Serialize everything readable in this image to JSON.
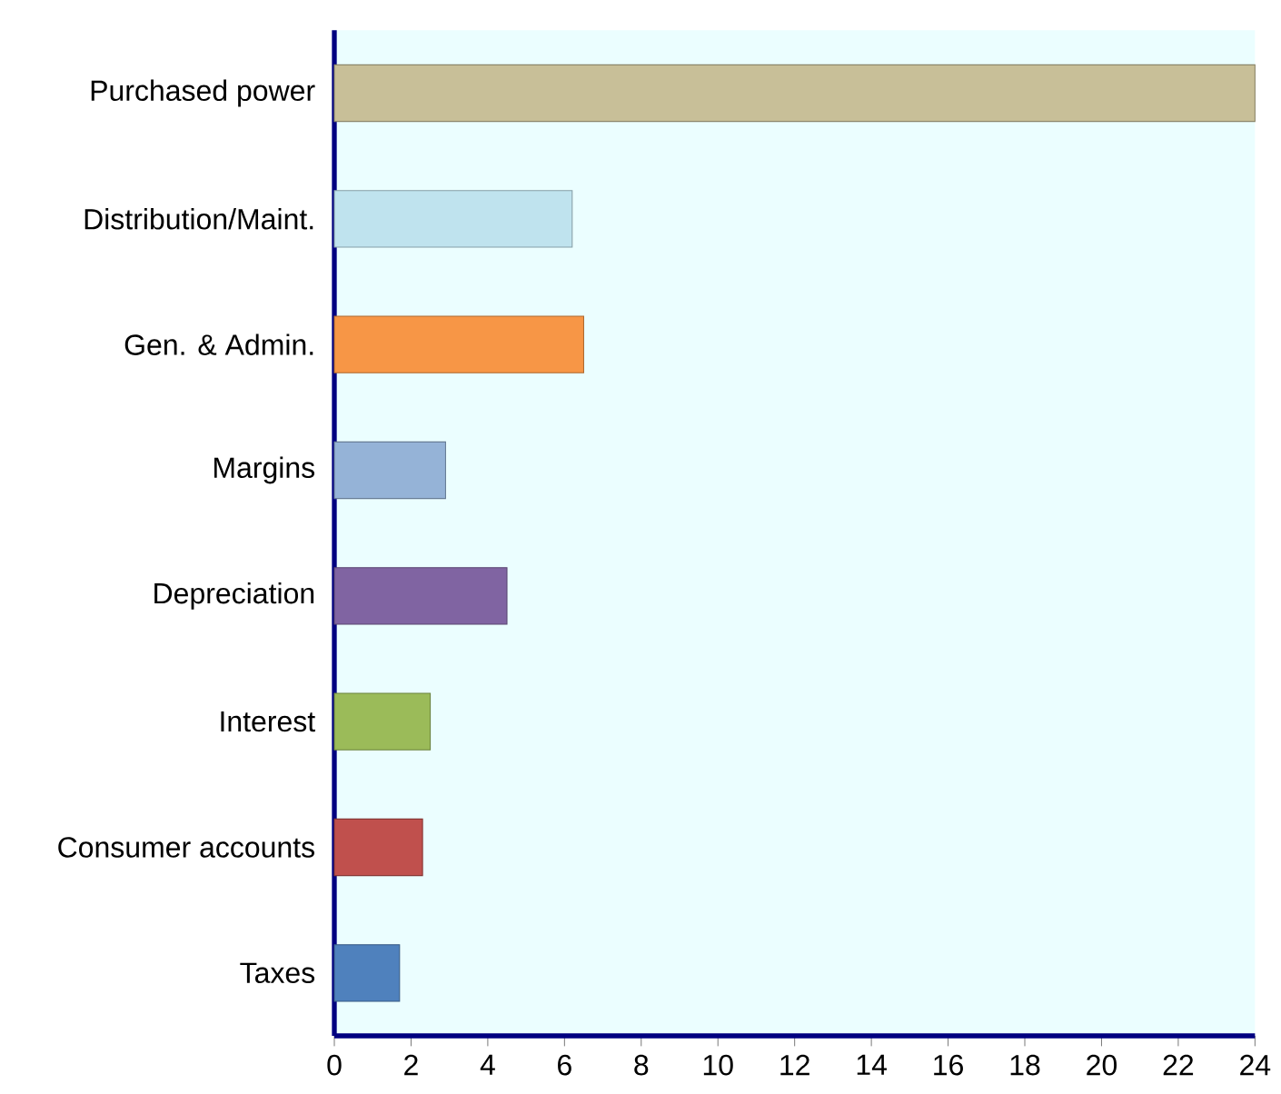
{
  "chart_data": {
    "type": "bar",
    "orientation": "horizontal",
    "categories": [
      "Purchased power",
      "Distribution/Maint.",
      "Gen. & Admin.",
      "Margins",
      "Depreciation",
      "Interest",
      "Consumer accounts",
      "Taxes"
    ],
    "values": [
      24,
      6.2,
      6.5,
      2.9,
      4.5,
      2.5,
      2.3,
      1.7
    ],
    "colors": [
      "#c8bf98",
      "#bfe3ee",
      "#f79646",
      "#95b3d7",
      "#8064a2",
      "#9bbb59",
      "#c0504d",
      "#4f81bd"
    ],
    "xlim": [
      0,
      24
    ],
    "xticks": [
      0,
      2,
      4,
      6,
      8,
      10,
      12,
      14,
      16,
      18,
      20,
      22,
      24
    ],
    "grid": false
  }
}
